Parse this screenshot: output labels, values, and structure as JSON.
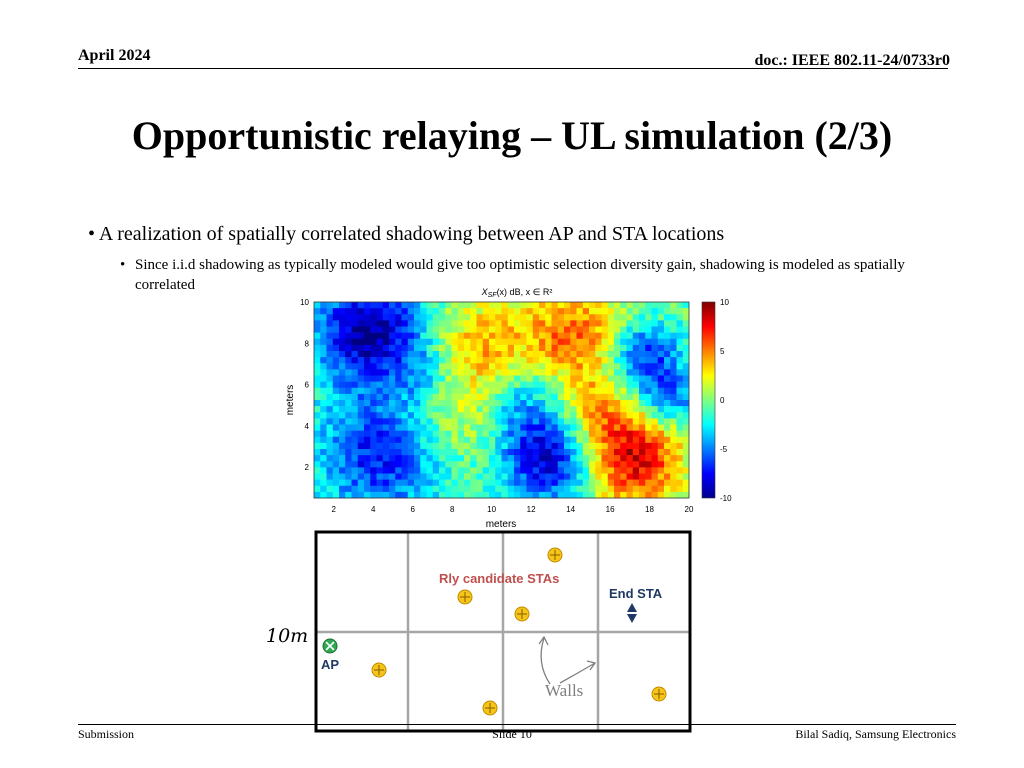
{
  "header": {
    "date": "April 2024",
    "doc_id": "doc.: IEEE 802.11-24/0733r0"
  },
  "title": "Opportunistic relaying – UL simulation (2/3)",
  "bullets": {
    "level1": "A realization of spatially correlated shadowing between AP and STA locations",
    "level2": "Since i.i.d shadowing as typically modeled would give too optimistic selection diversity gain, shadowing is modeled as spatially correlated"
  },
  "heatmap": {
    "title_symbol": "X",
    "title_subscript": "SF",
    "title_rest": "(x) dB,  x ∈ R²",
    "xlabel": "meters",
    "ylabel": "meters",
    "xticks": [
      "2",
      "4",
      "6",
      "8",
      "10",
      "12",
      "14",
      "16",
      "18",
      "20"
    ],
    "yticks": [
      "10",
      "8",
      "6",
      "4",
      "2"
    ],
    "colorbar_ticks": [
      "10",
      "5",
      "0",
      "-5",
      "-10"
    ],
    "colorscale": "jet",
    "range_db": [
      -10,
      10
    ]
  },
  "diagram": {
    "dimension_label": "10m",
    "ap_label": "AP",
    "relay_label": "Rly candidate STAs",
    "end_sta_label": "End STA",
    "walls_label": "Walls",
    "colors": {
      "relay_label": "#c0504d",
      "end_sta_label": "#1f3864",
      "ap_label": "#1f3864",
      "ap_marker": "#2fa84f",
      "sta_marker": "#f5c518",
      "wall": "#a6a6a6"
    }
  },
  "footer": {
    "left": "Submission",
    "center": "Slide 10",
    "right": "Bilal Sadiq, Samsung Electronics"
  }
}
